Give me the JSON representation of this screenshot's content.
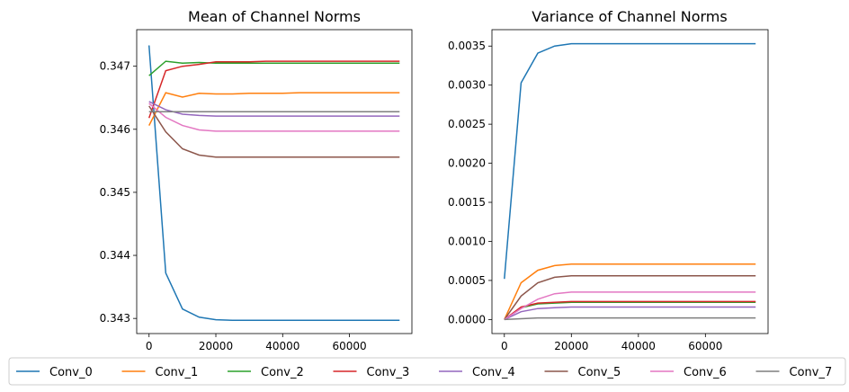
{
  "chart_data": [
    {
      "type": "line",
      "title": "Mean of Channel Norms",
      "xlabel": "",
      "ylabel": "",
      "xlim": [
        -3700,
        78700
      ],
      "ylim": [
        0.34276,
        0.34758
      ],
      "xticks": [
        0,
        20000,
        40000,
        60000
      ],
      "xtick_labels": [
        "0",
        "20000",
        "40000",
        "60000"
      ],
      "yticks": [
        0.343,
        0.344,
        0.345,
        0.346,
        0.347
      ],
      "ytick_labels": [
        "0.343",
        "0.344",
        "0.345",
        "0.346",
        "0.347"
      ],
      "grid": false,
      "x": [
        0,
        5000,
        10000,
        15000,
        20000,
        25000,
        30000,
        35000,
        40000,
        45000,
        50000,
        55000,
        60000,
        65000,
        70000,
        75000
      ],
      "series": [
        {
          "name": "Conv_0",
          "color": "#1f77b4",
          "values": [
            0.34733,
            0.34372,
            0.34315,
            0.34302,
            0.34298,
            0.34297,
            0.34297,
            0.34297,
            0.34297,
            0.34297,
            0.34297,
            0.34297,
            0.34297,
            0.34297,
            0.34297,
            0.34297
          ]
        },
        {
          "name": "Conv_1",
          "color": "#ff7f0e",
          "values": [
            0.34606,
            0.34658,
            0.34651,
            0.34657,
            0.34656,
            0.34656,
            0.34657,
            0.34657,
            0.34657,
            0.34658,
            0.34658,
            0.34658,
            0.34658,
            0.34658,
            0.34658,
            0.34658
          ]
        },
        {
          "name": "Conv_2",
          "color": "#2ca02c",
          "values": [
            0.34685,
            0.34708,
            0.34705,
            0.34706,
            0.34705,
            0.34705,
            0.34705,
            0.34705,
            0.34705,
            0.34705,
            0.34705,
            0.34705,
            0.34705,
            0.34705,
            0.34705,
            0.34705
          ]
        },
        {
          "name": "Conv_3",
          "color": "#d62728",
          "values": [
            0.34618,
            0.34693,
            0.347,
            0.34703,
            0.34707,
            0.34707,
            0.34707,
            0.34708,
            0.34708,
            0.34708,
            0.34708,
            0.34708,
            0.34708,
            0.34708,
            0.34708,
            0.34708
          ]
        },
        {
          "name": "Conv_4",
          "color": "#9467bd",
          "values": [
            0.34644,
            0.34631,
            0.34624,
            0.34622,
            0.34621,
            0.34621,
            0.34621,
            0.34621,
            0.34621,
            0.34621,
            0.34621,
            0.34621,
            0.34621,
            0.34621,
            0.34621,
            0.34621
          ]
        },
        {
          "name": "Conv_5",
          "color": "#8c564b",
          "values": [
            0.34637,
            0.34596,
            0.34569,
            0.34559,
            0.34556,
            0.34556,
            0.34556,
            0.34556,
            0.34556,
            0.34556,
            0.34556,
            0.34556,
            0.34556,
            0.34556,
            0.34556,
            0.34556
          ]
        },
        {
          "name": "Conv_6",
          "color": "#e377c2",
          "values": [
            0.34641,
            0.34619,
            0.34606,
            0.34599,
            0.34597,
            0.34597,
            0.34597,
            0.34597,
            0.34597,
            0.34597,
            0.34597,
            0.34597,
            0.34597,
            0.34597,
            0.34597,
            0.34597
          ]
        },
        {
          "name": "Conv_7",
          "color": "#7f7f7f",
          "values": [
            0.34628,
            0.34628,
            0.34628,
            0.34628,
            0.34628,
            0.34628,
            0.34628,
            0.34628,
            0.34628,
            0.34628,
            0.34628,
            0.34628,
            0.34628,
            0.34628,
            0.34628,
            0.34628
          ]
        }
      ]
    },
    {
      "type": "line",
      "title": "Variance of Channel Norms",
      "xlabel": "",
      "ylabel": "",
      "xlim": [
        -3700,
        78700
      ],
      "ylim": [
        -0.00018,
        0.00371
      ],
      "xticks": [
        0,
        20000,
        40000,
        60000
      ],
      "xtick_labels": [
        "0",
        "20000",
        "40000",
        "60000"
      ],
      "yticks": [
        0,
        0.0005,
        0.001,
        0.0015,
        0.002,
        0.0025,
        0.003,
        0.0035
      ],
      "ytick_labels": [
        "0.0000",
        "0.0005",
        "0.0010",
        "0.0015",
        "0.0020",
        "0.0025",
        "0.0030",
        "0.0035"
      ],
      "grid": false,
      "x": [
        0,
        5000,
        10000,
        15000,
        20000,
        25000,
        30000,
        35000,
        40000,
        45000,
        50000,
        55000,
        60000,
        65000,
        70000,
        75000
      ],
      "series": [
        {
          "name": "Conv_0",
          "color": "#1f77b4",
          "values": [
            0.00052,
            0.00303,
            0.00341,
            0.0035,
            0.00353,
            0.00353,
            0.00353,
            0.00353,
            0.00353,
            0.00353,
            0.00353,
            0.00353,
            0.00353,
            0.00353,
            0.00353,
            0.00353
          ]
        },
        {
          "name": "Conv_1",
          "color": "#ff7f0e",
          "values": [
            0.0,
            0.00047,
            0.00063,
            0.00069,
            0.00071,
            0.00071,
            0.00071,
            0.00071,
            0.00071,
            0.00071,
            0.00071,
            0.00071,
            0.00071,
            0.00071,
            0.00071,
            0.00071
          ]
        },
        {
          "name": "Conv_2",
          "color": "#2ca02c",
          "values": [
            0.0,
            0.00015,
            0.0002,
            0.00021,
            0.00022,
            0.00022,
            0.00022,
            0.00022,
            0.00022,
            0.00022,
            0.00022,
            0.00022,
            0.00022,
            0.00022,
            0.00022,
            0.00022
          ]
        },
        {
          "name": "Conv_3",
          "color": "#d62728",
          "values": [
            0.0,
            0.00016,
            0.00021,
            0.00022,
            0.00023,
            0.00023,
            0.00023,
            0.00023,
            0.00023,
            0.00023,
            0.00023,
            0.00023,
            0.00023,
            0.00023,
            0.00023,
            0.00023
          ]
        },
        {
          "name": "Conv_4",
          "color": "#9467bd",
          "values": [
            0.0,
            0.0001,
            0.00014,
            0.00015,
            0.00016,
            0.00016,
            0.00016,
            0.00016,
            0.00016,
            0.00016,
            0.00016,
            0.00016,
            0.00016,
            0.00016,
            0.00016,
            0.00016
          ]
        },
        {
          "name": "Conv_5",
          "color": "#8c564b",
          "values": [
            0.0,
            0.0003,
            0.00047,
            0.00054,
            0.00056,
            0.00056,
            0.00056,
            0.00056,
            0.00056,
            0.00056,
            0.00056,
            0.00056,
            0.00056,
            0.00056,
            0.00056,
            0.00056
          ]
        },
        {
          "name": "Conv_6",
          "color": "#e377c2",
          "values": [
            0.0,
            0.00014,
            0.00026,
            0.00033,
            0.00035,
            0.00035,
            0.00035,
            0.00035,
            0.00035,
            0.00035,
            0.00035,
            0.00035,
            0.00035,
            0.00035,
            0.00035,
            0.00035
          ]
        },
        {
          "name": "Conv_7",
          "color": "#7f7f7f",
          "values": [
            0.0,
            1e-05,
            2e-05,
            2e-05,
            2e-05,
            2e-05,
            2e-05,
            2e-05,
            2e-05,
            2e-05,
            2e-05,
            2e-05,
            2e-05,
            2e-05,
            2e-05,
            2e-05
          ]
        }
      ]
    }
  ],
  "legend": {
    "placement": "bottom",
    "entries": [
      {
        "name": "Conv_0",
        "color": "#1f77b4"
      },
      {
        "name": "Conv_1",
        "color": "#ff7f0e"
      },
      {
        "name": "Conv_2",
        "color": "#2ca02c"
      },
      {
        "name": "Conv_3",
        "color": "#d62728"
      },
      {
        "name": "Conv_4",
        "color": "#9467bd"
      },
      {
        "name": "Conv_5",
        "color": "#8c564b"
      },
      {
        "name": "Conv_6",
        "color": "#e377c2"
      },
      {
        "name": "Conv_7",
        "color": "#7f7f7f"
      }
    ]
  }
}
